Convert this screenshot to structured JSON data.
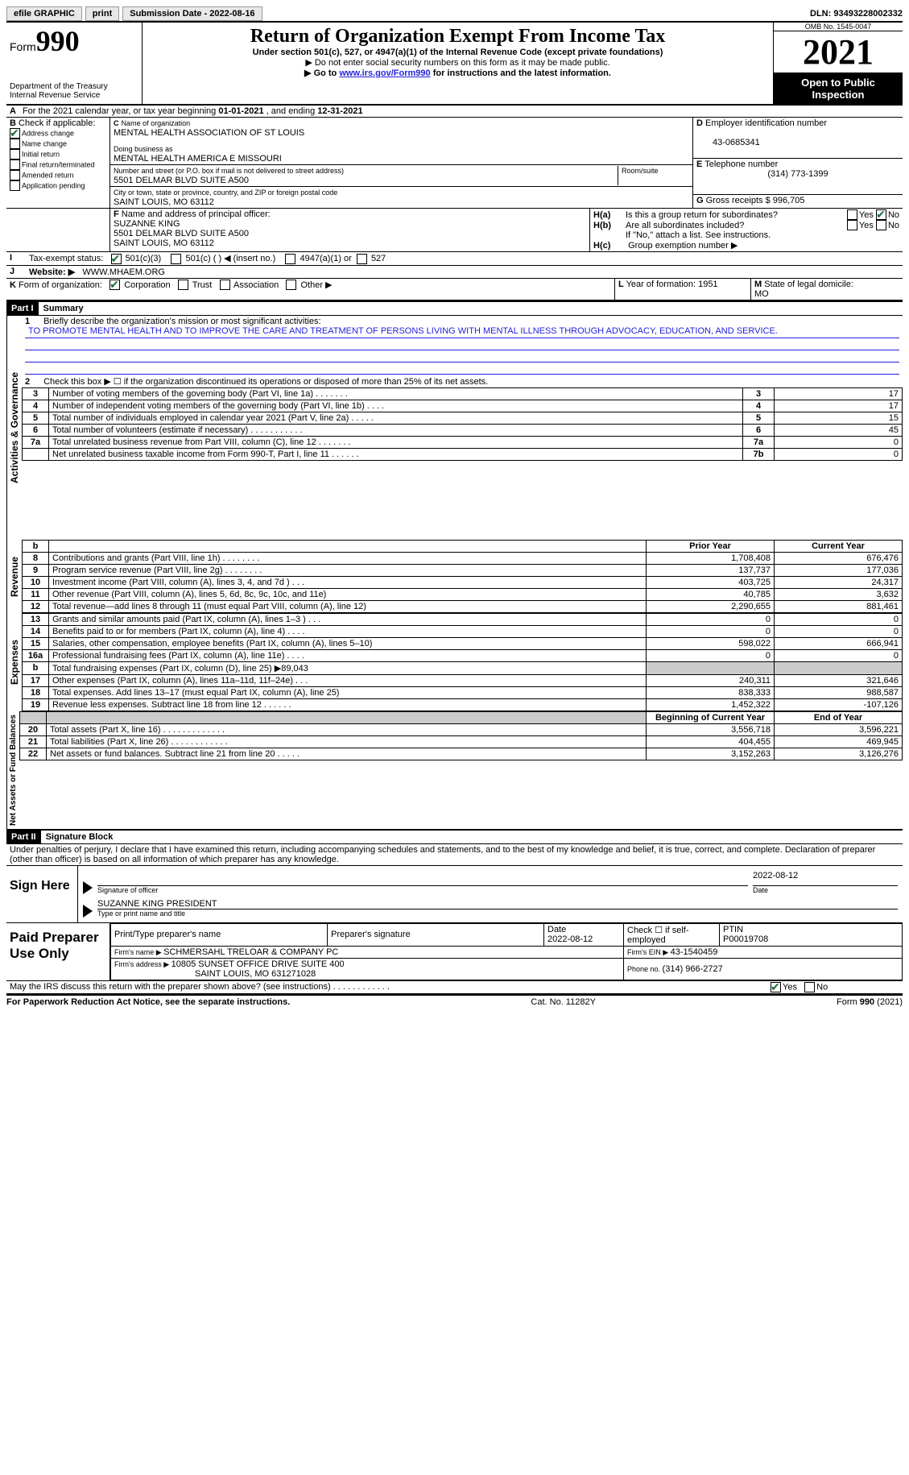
{
  "topbar": {
    "efile": "efile GRAPHIC",
    "print": "print",
    "sub_label": "Submission Date - ",
    "sub_date": "2022-08-16",
    "dln_label": "DLN: ",
    "dln": "93493228002332"
  },
  "header": {
    "form_word": "Form",
    "form_no": "990",
    "dept1": "Department of the Treasury",
    "dept2": "Internal Revenue Service",
    "title": "Return of Organization Exempt From Income Tax",
    "sub1": "Under section 501(c), 527, or 4947(a)(1) of the Internal Revenue Code (except private foundations)",
    "sub2": "Do not enter social security numbers on this form as it may be made public.",
    "sub3_a": "Go to ",
    "sub3_link": "www.irs.gov/Form990",
    "sub3_b": " for instructions and the latest information.",
    "omb_label": "OMB No. ",
    "omb": "1545-0047",
    "year": "2021",
    "open": "Open to Public Inspection"
  },
  "A": {
    "text_a": "For the 2021 calendar year, or tax year beginning ",
    "begin": "01-01-2021",
    "mid": " , and ending ",
    "end": "12-31-2021"
  },
  "B": {
    "label": "Check if applicable:",
    "items": [
      "Address change",
      "Name change",
      "Initial return",
      "Final return/terminated",
      "Amended return",
      "Application pending"
    ],
    "checked_index": 0,
    "prefix": "B"
  },
  "C": {
    "label": "Name of organization",
    "name": "MENTAL HEALTH ASSOCIATION OF ST LOUIS",
    "dba_label": "Doing business as",
    "dba": "MENTAL HEALTH AMERICA E MISSOURI",
    "addr_label": "Number and street (or P.O. box if mail is not delivered to street address)",
    "room_label": "Room/suite",
    "addr": "5501 DELMAR BLVD SUITE A500",
    "city_label": "City or town, state or province, country, and ZIP or foreign postal code",
    "city": "SAINT LOUIS, MO  63112",
    "prefix": "C"
  },
  "D": {
    "label": "Employer identification number",
    "val": "43-0685341",
    "prefix": "D"
  },
  "E": {
    "label": "Telephone number",
    "val": "(314) 773-1399",
    "prefix": "E"
  },
  "G": {
    "label": "Gross receipts $ ",
    "val": "996,705",
    "prefix": "G"
  },
  "F": {
    "label": "Name and address of principal officer:",
    "name": "SUZANNE KING",
    "addr1": "5501 DELMAR BLVD SUITE A500",
    "addr2": "SAINT LOUIS, MO  63112",
    "prefix": "F"
  },
  "H": {
    "a": "Is this a group return for subordinates?",
    "b": "Are all subordinates included?",
    "note": "If \"No,\" attach a list. See instructions.",
    "c": "Group exemption number ▶",
    "ha": "H(a)",
    "hb": "H(b)",
    "hc": "H(c)",
    "yes": "Yes",
    "no": "No"
  },
  "I": {
    "label": "Tax-exempt status:",
    "opt1": "501(c)(3)",
    "opt2": "501(c) (   ) ◀ (insert no.)",
    "opt3": "4947(a)(1) or",
    "opt4": "527",
    "prefix": "I"
  },
  "J": {
    "label": "Website: ▶",
    "val": "WWW.MHAEM.ORG",
    "prefix": "J"
  },
  "K": {
    "label": "Form of organization:",
    "opts": [
      "Corporation",
      "Trust",
      "Association",
      "Other ▶"
    ],
    "prefix": "K"
  },
  "L": {
    "label": "Year of formation: ",
    "val": "1951",
    "prefix": "L"
  },
  "M": {
    "label": "State of legal domicile: ",
    "val": "MO",
    "prefix": "M"
  },
  "part1": {
    "hdr": "Part I",
    "title": "Summary"
  },
  "q1": {
    "num": "1",
    "label": "Briefly describe the organization's mission or most significant activities:",
    "mission": "TO PROMOTE MENTAL HEALTH AND TO IMPROVE THE CARE AND TREATMENT OF PERSONS LIVING WITH MENTAL ILLNESS THROUGH ADVOCACY, EDUCATION, AND SERVICE."
  },
  "q2": {
    "num": "2",
    "label": "Check this box ▶ ☐ if the organization discontinued its operations or disposed of more than 25% of its net assets."
  },
  "summary_rows": [
    {
      "n": "3",
      "d": "Number of voting members of the governing body (Part VI, line 1a)   .    .    .    .    .    .    .",
      "ln": "3",
      "v": "17"
    },
    {
      "n": "4",
      "d": "Number of independent voting members of the governing body (Part VI, line 1b)   .    .    .    .",
      "ln": "4",
      "v": "17"
    },
    {
      "n": "5",
      "d": "Total number of individuals employed in calendar year 2021 (Part V, line 2a)   .    .    .    .    .",
      "ln": "5",
      "v": "15"
    },
    {
      "n": "6",
      "d": "Total number of volunteers (estimate if necessary)    .    .    .    .    .    .    .    .    .    .    .",
      "ln": "6",
      "v": "45"
    },
    {
      "n": "7a",
      "d": "Total unrelated business revenue from Part VIII, column (C), line 12    .    .    .    .    .    .    .",
      "ln": "7a",
      "v": "0"
    },
    {
      "n": "",
      "d": "Net unrelated business taxable income from Form 990-T, Part I, line 11   .    .    .    .    .    .",
      "ln": "7b",
      "v": "0"
    }
  ],
  "section_labels": {
    "activities": "Activities & Governance",
    "revenue": "Revenue",
    "expenses": "Expenses",
    "netassets": "Net Assets or Fund Balances"
  },
  "col_hdr": {
    "b": "b",
    "prior": "Prior Year",
    "current": "Current Year"
  },
  "revenue_rows": [
    {
      "n": "8",
      "d": "Contributions and grants (Part VIII, line 1h)   .    .    .    .    .    .    .    .",
      "p": "1,708,408",
      "c": "676,476"
    },
    {
      "n": "9",
      "d": "Program service revenue (Part VIII, line 2g)   .    .    .    .    .    .    .    .",
      "p": "137,737",
      "c": "177,036"
    },
    {
      "n": "10",
      "d": "Investment income (Part VIII, column (A), lines 3, 4, and 7d )   .    .    .",
      "p": "403,725",
      "c": "24,317"
    },
    {
      "n": "11",
      "d": "Other revenue (Part VIII, column (A), lines 5, 6d, 8c, 9c, 10c, and 11e)",
      "p": "40,785",
      "c": "3,632"
    },
    {
      "n": "12",
      "d": "Total revenue—add lines 8 through 11 (must equal Part VIII, column (A), line 12)",
      "p": "2,290,655",
      "c": "881,461"
    }
  ],
  "expense_rows": [
    {
      "n": "13",
      "d": "Grants and similar amounts paid (Part IX, column (A), lines 1–3 )   .    .    .",
      "p": "0",
      "c": "0"
    },
    {
      "n": "14",
      "d": "Benefits paid to or for members (Part IX, column (A), line 4)   .    .    .    .",
      "p": "0",
      "c": "0"
    },
    {
      "n": "15",
      "d": "Salaries, other compensation, employee benefits (Part IX, column (A), lines 5–10)",
      "p": "598,022",
      "c": "666,941"
    },
    {
      "n": "16a",
      "d": "Professional fundraising fees (Part IX, column (A), line 11e)   .    .    .    .",
      "p": "0",
      "c": "0"
    }
  ],
  "exp_16b": {
    "n": "b",
    "d": "Total fundraising expenses (Part IX, column (D), line 25) ▶",
    "amt": "89,043"
  },
  "expense_rows2": [
    {
      "n": "17",
      "d": "Other expenses (Part IX, column (A), lines 11a–11d, 11f–24e)   .    .    .",
      "p": "240,311",
      "c": "321,646"
    },
    {
      "n": "18",
      "d": "Total expenses. Add lines 13–17 (must equal Part IX, column (A), line 25)",
      "p": "838,333",
      "c": "988,587"
    },
    {
      "n": "19",
      "d": "Revenue less expenses. Subtract line 18 from line 12   .    .    .    .    .    .",
      "p": "1,452,322",
      "c": "-107,126"
    }
  ],
  "na_hdr": {
    "prior": "Beginning of Current Year",
    "current": "End of Year"
  },
  "na_rows": [
    {
      "n": "20",
      "d": "Total assets (Part X, line 16)   .    .    .    .    .    .    .    .    .    .    .    .    .",
      "p": "3,556,718",
      "c": "3,596,221"
    },
    {
      "n": "21",
      "d": "Total liabilities (Part X, line 26)   .    .    .    .    .    .    .    .    .    .    .    .",
      "p": "404,455",
      "c": "469,945"
    },
    {
      "n": "22",
      "d": "Net assets or fund balances. Subtract line 21 from line 20   .    .    .    .    .",
      "p": "3,152,263",
      "c": "3,126,276"
    }
  ],
  "part2": {
    "hdr": "Part II",
    "title": "Signature Block"
  },
  "perjury": "Under penalties of perjury, I declare that I have examined this return, including accompanying schedules and statements, and to the best of my knowledge and belief, it is true, correct, and complete. Declaration of preparer (other than officer) is based on all information of which preparer has any knowledge.",
  "sign": {
    "here": "Sign Here",
    "sig_label": "Signature of officer",
    "date": "2022-08-12",
    "date_label": "Date",
    "name": "SUZANNE KING  PRESIDENT",
    "name_label": "Type or print name and title"
  },
  "paid": {
    "title": "Paid Preparer Use Only",
    "h1": "Print/Type preparer's name",
    "h2": "Preparer's signature",
    "h3_label": "Date",
    "h3": "2022-08-12",
    "h4": "Check ☐ if self-employed",
    "h5_label": "PTIN",
    "h5": "P00019708",
    "firm_label": "Firm's name    ▶ ",
    "firm": "SCHMERSAHL TRELOAR & COMPANY PC",
    "ein_label": "Firm's EIN ▶ ",
    "ein": "43-1540459",
    "addr_label": "Firm's address ▶ ",
    "addr1": "10805 SUNSET OFFICE DRIVE SUITE 400",
    "addr2": "SAINT LOUIS, MO  631271028",
    "phone_label": "Phone no. ",
    "phone": "(314) 966-2727"
  },
  "may": {
    "q": "May the IRS discuss this return with the preparer shown above? (see instructions)    .    .    .    .    .    .    .    .    .    .    .    .",
    "yes": "Yes",
    "no": "No"
  },
  "footer": {
    "left": "For Paperwork Reduction Act Notice, see the separate instructions.",
    "mid": "Cat. No. 11282Y",
    "right": "Form 990 (2021)"
  }
}
